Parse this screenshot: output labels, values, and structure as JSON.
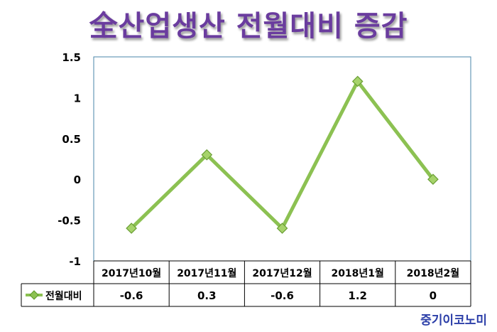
{
  "header": {
    "title": "全산업생산 전월대비 증감"
  },
  "credit": "중기이코노미",
  "chart_data": {
    "type": "line",
    "categories": [
      "2017년10월",
      "2017년11월",
      "2017년12월",
      "2018년1월",
      "2018년2월"
    ],
    "series": [
      {
        "name": "전월대비",
        "values": [
          -0.6,
          0.3,
          -0.6,
          1.2,
          0
        ]
      }
    ],
    "y_ticks": [
      "1.5",
      "1",
      "0.5",
      "0",
      "-0.5",
      "-1"
    ],
    "ylim": [
      -1,
      1.5
    ],
    "grid": false,
    "data_table": true,
    "colors": {
      "line": "#8cc152",
      "marker": "#8cc152",
      "plot_border": "#4a86a8"
    }
  }
}
